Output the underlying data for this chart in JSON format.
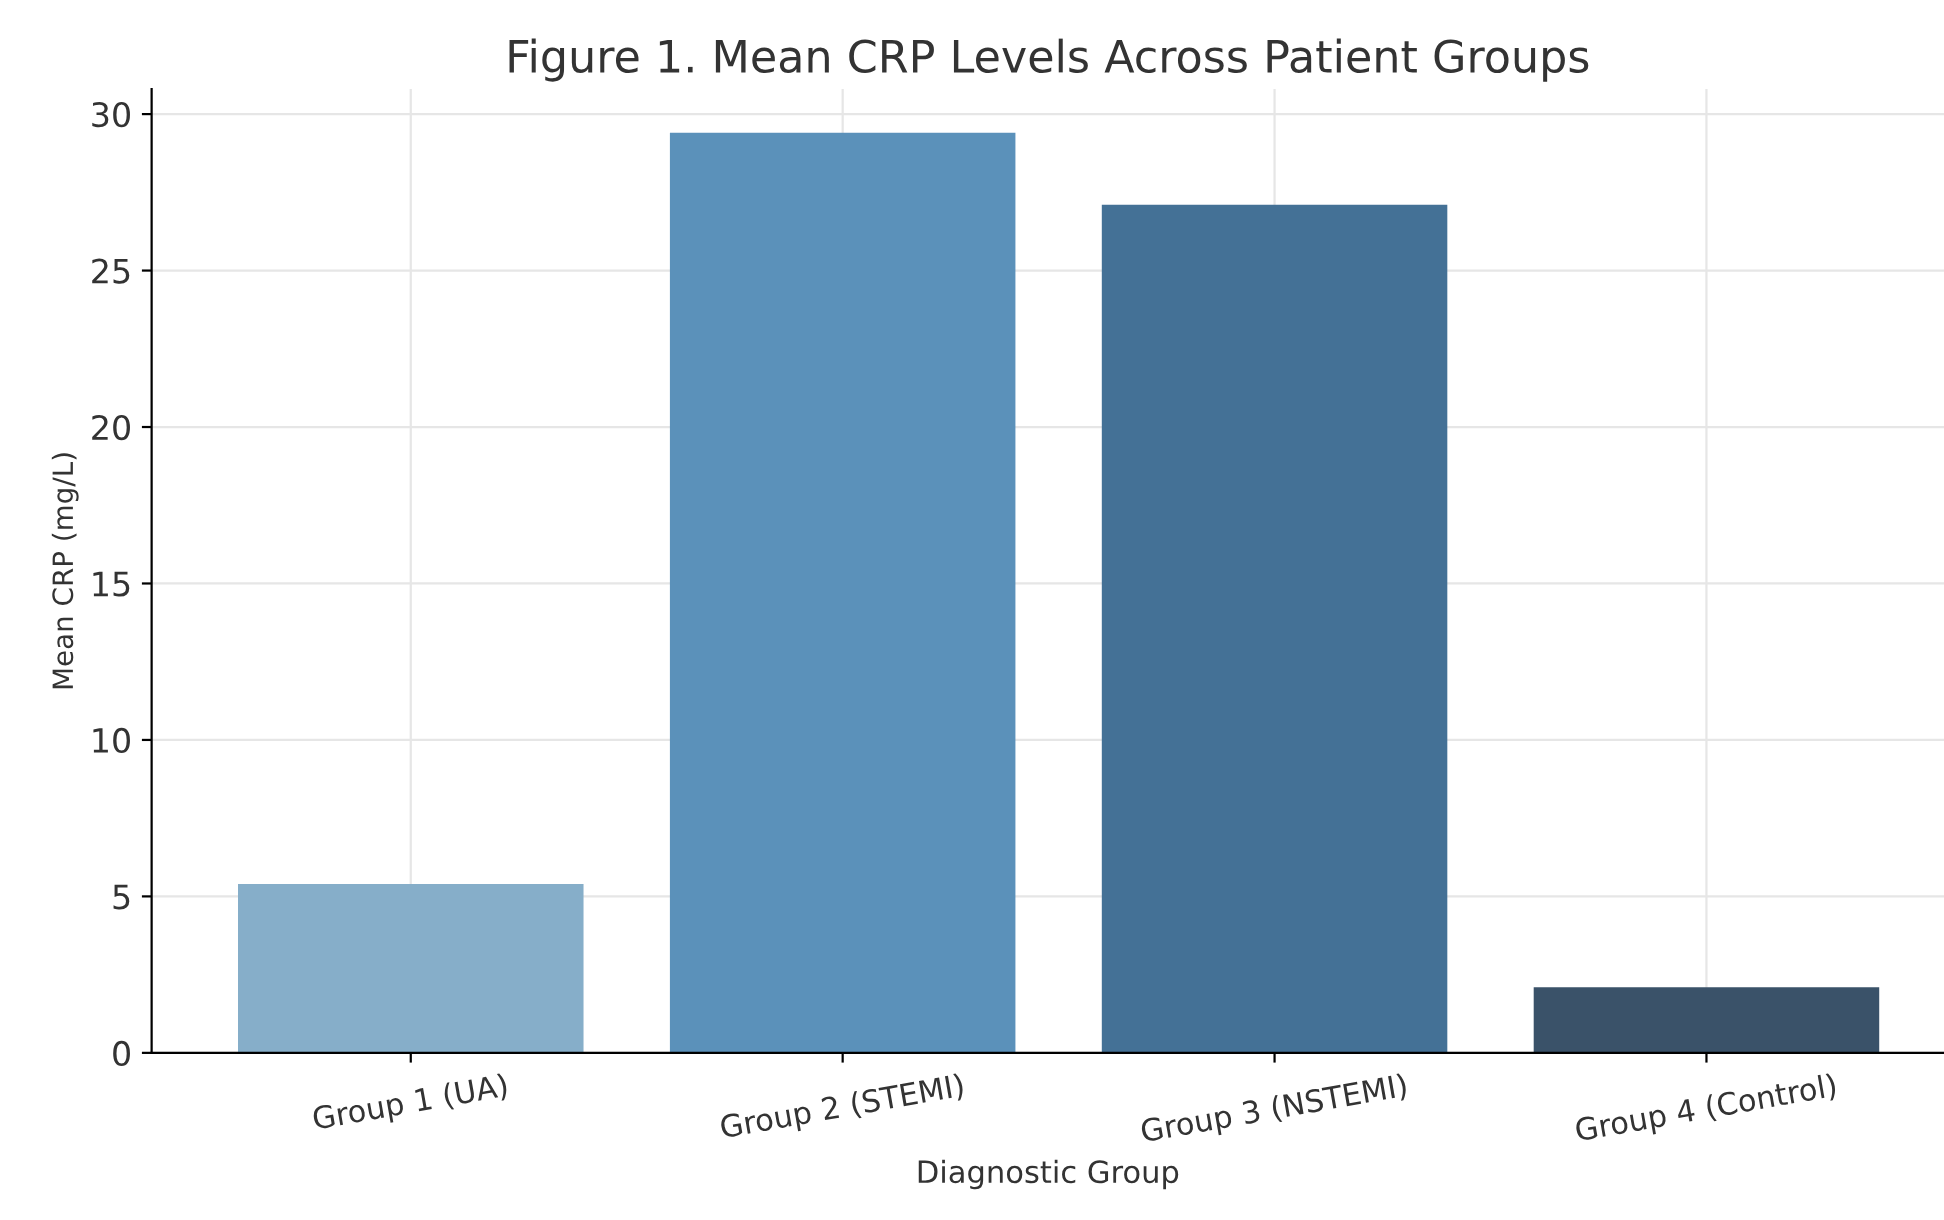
{
  "chart_data": {
    "type": "bar",
    "title": "Figure 1. Mean CRP Levels Across Patient Groups",
    "xlabel": "Diagnostic Group",
    "ylabel": "Mean CRP (mg/L)",
    "categories": [
      "Group 1 (UA)",
      "Group 2 (STEMI)",
      "Group 3 (NSTEMI)",
      "Group 4 (Control)"
    ],
    "values": [
      5.4,
      29.4,
      27.1,
      2.1
    ],
    "colors": [
      "#86aec9",
      "#5b91ba",
      "#447196",
      "#3a5269"
    ],
    "ylim": [
      0,
      30.8
    ],
    "yticks": [
      0,
      5,
      10,
      15,
      20,
      25,
      30
    ],
    "grid": true
  }
}
